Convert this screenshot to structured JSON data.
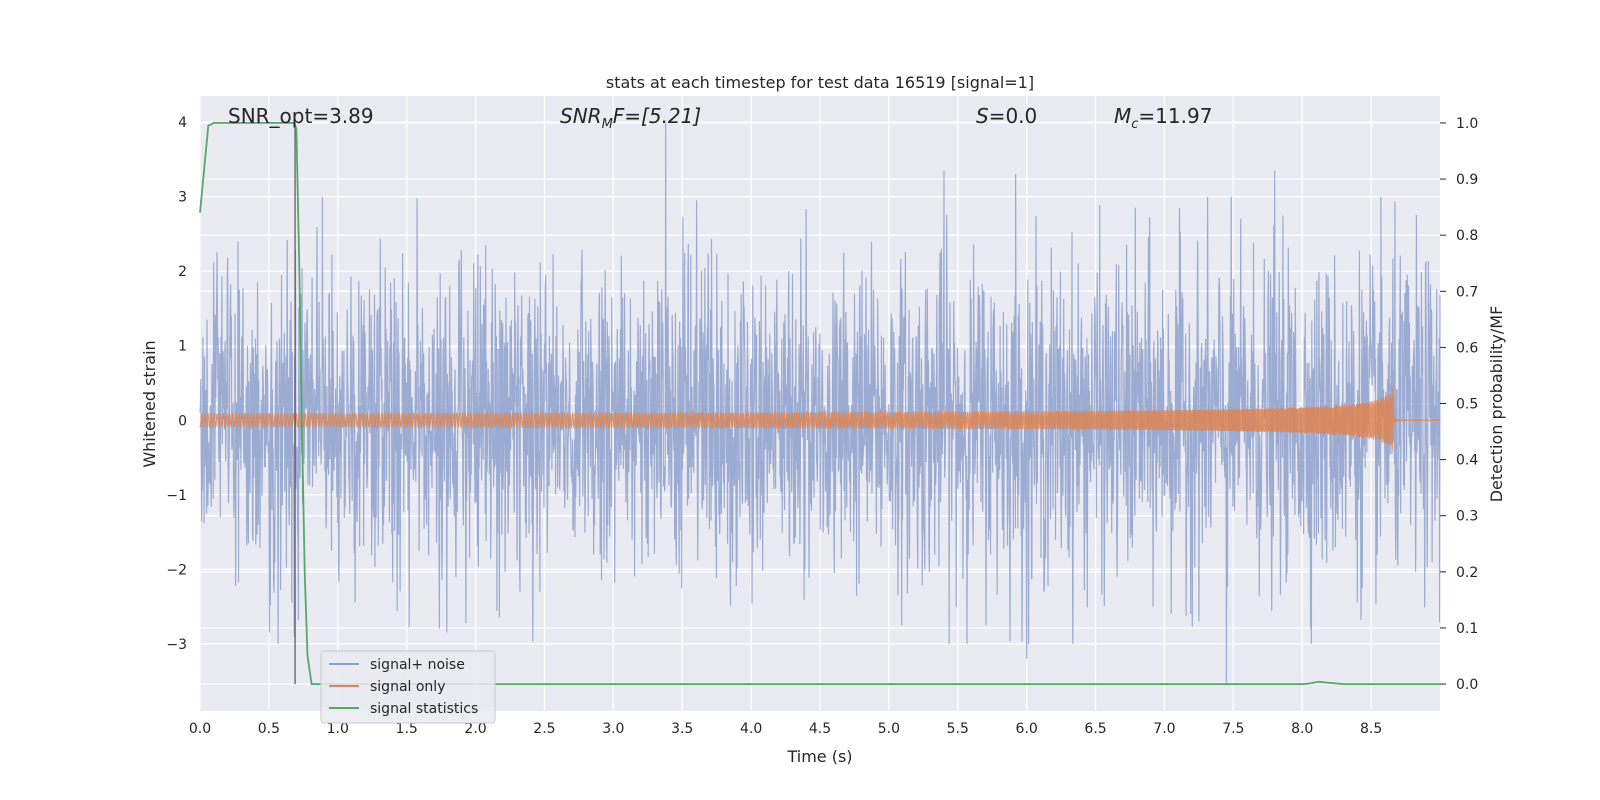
{
  "chart_data": {
    "type": "line",
    "title": "stats at each timestep for test data 16519 [signal=1]",
    "xlabel": "Time (s)",
    "ylabel_left": "Whitened strain",
    "ylabel_right": "Detection probability/MF",
    "xlim": [
      0.0,
      9.0
    ],
    "ylim_left": [
      -3.9,
      4.35
    ],
    "ylim_right": [
      -0.048,
      1.048
    ],
    "x_ticks": [
      "0.0",
      "0.5",
      "1.0",
      "1.5",
      "2.0",
      "2.5",
      "3.0",
      "3.5",
      "4.0",
      "4.5",
      "5.0",
      "5.5",
      "6.0",
      "6.5",
      "7.0",
      "7.5",
      "8.0",
      "8.5"
    ],
    "y_ticks_left": [
      "−3",
      "−2",
      "−1",
      "0",
      "1",
      "2",
      "3",
      "4"
    ],
    "y_ticks_right": [
      "0.0",
      "0.1",
      "0.2",
      "0.3",
      "0.4",
      "0.5",
      "0.6",
      "0.7",
      "0.8",
      "0.9",
      "1.0"
    ],
    "grid": true,
    "annotations": {
      "snr_opt": "SNR_opt=3.89",
      "snr_mf_label": "SNR",
      "snr_mf_sub": "M",
      "snr_mf_suffix": "F=[5.21]",
      "s_label": "S",
      "s_value": "=0.0",
      "mc_label": "M",
      "mc_sub": "c",
      "mc_value": "=11.97"
    },
    "marker_time": 0.69,
    "legend_position": "lower-left",
    "series": [
      {
        "name": "signal+ noise",
        "color": "#8da0cb",
        "axis": "left",
        "description_amplitude_sigma": 1.0,
        "notable_peaks": [
          [
            3.38,
            4.0
          ],
          [
            5.4,
            3.35
          ],
          [
            5.92,
            3.3
          ],
          [
            7.8,
            3.35
          ],
          [
            7.45,
            -3.55
          ],
          [
            6.0,
            -3.2
          ]
        ]
      },
      {
        "name": "signal only",
        "color": "#dd8452",
        "axis": "left",
        "chirp_merger_time": 8.66,
        "chirp_peak_amplitude": 0.52
      },
      {
        "name": "signal statistics",
        "color": "#55a868",
        "axis": "right",
        "points": [
          [
            0.0,
            0.84
          ],
          [
            0.06,
            0.995
          ],
          [
            0.1,
            1.0
          ],
          [
            0.3,
            1.0
          ],
          [
            0.5,
            1.0
          ],
          [
            0.68,
            1.0
          ],
          [
            0.7,
            0.99
          ],
          [
            0.72,
            0.75
          ],
          [
            0.74,
            0.45
          ],
          [
            0.76,
            0.2
          ],
          [
            0.78,
            0.05
          ],
          [
            0.81,
            0.0
          ],
          [
            1.0,
            0.0
          ],
          [
            2.0,
            0.0
          ],
          [
            3.0,
            0.0
          ],
          [
            4.0,
            0.0
          ],
          [
            5.0,
            0.0
          ],
          [
            6.0,
            0.0
          ],
          [
            7.0,
            0.0
          ],
          [
            8.0,
            0.0
          ],
          [
            8.05,
            0.001
          ],
          [
            8.12,
            0.004
          ],
          [
            8.2,
            0.002
          ],
          [
            8.3,
            0.0
          ],
          [
            9.0,
            0.0
          ]
        ]
      }
    ]
  }
}
